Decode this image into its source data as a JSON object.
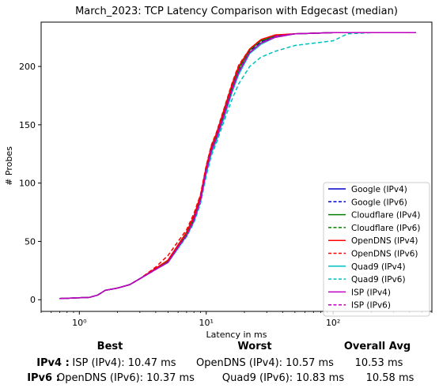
{
  "chart_data": {
    "type": "line",
    "title": "March_2023: TCP Latency Comparison with Edgecast (median)",
    "xlabel": "Latency in ms",
    "ylabel": "# Probes",
    "xscale": "log",
    "xlim": [
      0.5,
      600
    ],
    "ylim": [
      -10,
      238
    ],
    "xticks": [
      {
        "value": 1,
        "label": "10⁰"
      },
      {
        "value": 10,
        "label": "10¹"
      },
      {
        "value": 100,
        "label": "10²"
      }
    ],
    "yticks": [
      {
        "value": 0,
        "label": "0"
      },
      {
        "value": 50,
        "label": "50"
      },
      {
        "value": 100,
        "label": "100"
      },
      {
        "value": 150,
        "label": "150"
      },
      {
        "value": 200,
        "label": "200"
      }
    ],
    "grid": false,
    "legend_position": "lower-right",
    "series": [
      {
        "name": "Google (IPv4)",
        "color": "#0000cc",
        "style": "solid",
        "points": [
          [
            0.7,
            1
          ],
          [
            1.2,
            2
          ],
          [
            1.4,
            4
          ],
          [
            1.6,
            8
          ],
          [
            2.0,
            10
          ],
          [
            2.5,
            13
          ],
          [
            3.0,
            18
          ],
          [
            4.0,
            26
          ],
          [
            5.0,
            32
          ],
          [
            6.0,
            45
          ],
          [
            7.0,
            55
          ],
          [
            8.0,
            68
          ],
          [
            9.0,
            85
          ],
          [
            10.0,
            110
          ],
          [
            11.0,
            128
          ],
          [
            12.0,
            138
          ],
          [
            14.0,
            160
          ],
          [
            16.0,
            180
          ],
          [
            18.0,
            195
          ],
          [
            22.0,
            212
          ],
          [
            27.0,
            220
          ],
          [
            35.0,
            226
          ],
          [
            50.0,
            228
          ],
          [
            100.0,
            229
          ],
          [
            200.0,
            229
          ],
          [
            450.0,
            229
          ]
        ]
      },
      {
        "name": "Google (IPv6)",
        "color": "#0000cc",
        "style": "dashed",
        "points": [
          [
            0.7,
            1
          ],
          [
            1.2,
            2
          ],
          [
            1.4,
            4
          ],
          [
            1.6,
            8
          ],
          [
            2.0,
            10
          ],
          [
            2.5,
            13
          ],
          [
            3.0,
            18
          ],
          [
            4.0,
            26
          ],
          [
            5.0,
            32
          ],
          [
            6.0,
            45
          ],
          [
            7.0,
            56
          ],
          [
            8.0,
            70
          ],
          [
            9.0,
            86
          ],
          [
            10.0,
            112
          ],
          [
            11.0,
            129
          ],
          [
            12.0,
            139
          ],
          [
            14.0,
            161
          ],
          [
            16.0,
            182
          ],
          [
            18.0,
            197
          ],
          [
            22.0,
            213
          ],
          [
            27.0,
            221
          ],
          [
            35.0,
            226
          ],
          [
            50.0,
            228
          ],
          [
            100.0,
            229
          ],
          [
            200.0,
            229
          ],
          [
            450.0,
            229
          ]
        ]
      },
      {
        "name": "Cloudflare (IPv4)",
        "color": "#008000",
        "style": "solid",
        "points": [
          [
            0.7,
            1
          ],
          [
            1.2,
            2
          ],
          [
            1.4,
            4
          ],
          [
            1.6,
            8
          ],
          [
            2.0,
            10
          ],
          [
            2.5,
            13
          ],
          [
            3.0,
            18
          ],
          [
            4.0,
            27
          ],
          [
            5.0,
            33
          ],
          [
            6.0,
            46
          ],
          [
            7.0,
            56
          ],
          [
            8.0,
            70
          ],
          [
            9.0,
            87
          ],
          [
            10.0,
            112
          ],
          [
            11.0,
            130
          ],
          [
            12.0,
            140
          ],
          [
            14.0,
            163
          ],
          [
            16.0,
            183
          ],
          [
            18.0,
            198
          ],
          [
            22.0,
            214
          ],
          [
            27.0,
            222
          ],
          [
            35.0,
            226
          ],
          [
            50.0,
            228
          ],
          [
            100.0,
            229
          ],
          [
            200.0,
            229
          ],
          [
            450.0,
            229
          ]
        ]
      },
      {
        "name": "Cloudflare (IPv6)",
        "color": "#008000",
        "style": "dashed",
        "points": [
          [
            0.7,
            1
          ],
          [
            1.2,
            2
          ],
          [
            1.4,
            4
          ],
          [
            1.6,
            8
          ],
          [
            2.0,
            10
          ],
          [
            2.5,
            13
          ],
          [
            3.0,
            18
          ],
          [
            4.0,
            27
          ],
          [
            5.0,
            33
          ],
          [
            6.0,
            46
          ],
          [
            7.0,
            57
          ],
          [
            8.0,
            71
          ],
          [
            9.0,
            88
          ],
          [
            10.0,
            113
          ],
          [
            11.0,
            131
          ],
          [
            12.0,
            141
          ],
          [
            14.0,
            164
          ],
          [
            16.0,
            184
          ],
          [
            18.0,
            199
          ],
          [
            22.0,
            214
          ],
          [
            27.0,
            222
          ],
          [
            35.0,
            226
          ],
          [
            50.0,
            228
          ],
          [
            100.0,
            229
          ],
          [
            200.0,
            229
          ],
          [
            450.0,
            229
          ]
        ]
      },
      {
        "name": "OpenDNS (IPv4)",
        "color": "#ff0000",
        "style": "solid",
        "points": [
          [
            0.7,
            1
          ],
          [
            1.2,
            2
          ],
          [
            1.4,
            4
          ],
          [
            1.6,
            8
          ],
          [
            2.0,
            10
          ],
          [
            2.5,
            13
          ],
          [
            3.0,
            18
          ],
          [
            4.0,
            27
          ],
          [
            5.0,
            34
          ],
          [
            6.0,
            47
          ],
          [
            7.0,
            58
          ],
          [
            8.0,
            72
          ],
          [
            9.0,
            89
          ],
          [
            10.0,
            114
          ],
          [
            11.0,
            132
          ],
          [
            12.0,
            142
          ],
          [
            14.0,
            165
          ],
          [
            16.0,
            185
          ],
          [
            18.0,
            200
          ],
          [
            22.0,
            215
          ],
          [
            27.0,
            223
          ],
          [
            35.0,
            227
          ],
          [
            50.0,
            228
          ],
          [
            100.0,
            229
          ],
          [
            200.0,
            229
          ],
          [
            450.0,
            229
          ]
        ]
      },
      {
        "name": "OpenDNS (IPv6)",
        "color": "#ff0000",
        "style": "dashed",
        "points": [
          [
            0.7,
            1
          ],
          [
            1.2,
            2
          ],
          [
            1.4,
            4
          ],
          [
            1.6,
            8
          ],
          [
            2.0,
            10
          ],
          [
            2.5,
            13
          ],
          [
            3.0,
            18
          ],
          [
            4.0,
            28
          ],
          [
            5.0,
            38
          ],
          [
            6.0,
            50
          ],
          [
            7.0,
            60
          ],
          [
            8.0,
            74
          ],
          [
            9.0,
            90
          ],
          [
            10.0,
            115
          ],
          [
            11.0,
            133
          ],
          [
            12.0,
            143
          ],
          [
            14.0,
            166
          ],
          [
            16.0,
            186
          ],
          [
            18.0,
            201
          ],
          [
            22.0,
            215
          ],
          [
            27.0,
            223
          ],
          [
            35.0,
            227
          ],
          [
            50.0,
            228
          ],
          [
            100.0,
            229
          ],
          [
            200.0,
            229
          ],
          [
            450.0,
            229
          ]
        ]
      },
      {
        "name": "Quad9 (IPv4)",
        "color": "#00bfbf",
        "style": "solid",
        "points": [
          [
            0.7,
            1
          ],
          [
            1.2,
            2
          ],
          [
            1.4,
            4
          ],
          [
            1.6,
            8
          ],
          [
            2.0,
            10
          ],
          [
            2.5,
            13
          ],
          [
            3.0,
            18
          ],
          [
            4.0,
            26
          ],
          [
            5.0,
            32
          ],
          [
            6.0,
            44
          ],
          [
            7.0,
            55
          ],
          [
            8.0,
            67
          ],
          [
            9.0,
            84
          ],
          [
            10.0,
            108
          ],
          [
            11.0,
            126
          ],
          [
            12.0,
            136
          ],
          [
            14.0,
            158
          ],
          [
            16.0,
            178
          ],
          [
            18.0,
            193
          ],
          [
            22.0,
            211
          ],
          [
            27.0,
            219
          ],
          [
            35.0,
            225
          ],
          [
            50.0,
            228
          ],
          [
            100.0,
            229
          ],
          [
            200.0,
            229
          ],
          [
            450.0,
            229
          ]
        ]
      },
      {
        "name": "Quad9 (IPv6)",
        "color": "#00bfbf",
        "style": "dashed",
        "points": [
          [
            0.7,
            1
          ],
          [
            1.2,
            2
          ],
          [
            1.4,
            4
          ],
          [
            1.6,
            8
          ],
          [
            2.0,
            10
          ],
          [
            2.5,
            13
          ],
          [
            3.0,
            18
          ],
          [
            4.0,
            26
          ],
          [
            5.0,
            32
          ],
          [
            6.0,
            44
          ],
          [
            7.0,
            54
          ],
          [
            8.0,
            66
          ],
          [
            9.0,
            82
          ],
          [
            10.0,
            106
          ],
          [
            11.0,
            124
          ],
          [
            12.0,
            134
          ],
          [
            14.0,
            155
          ],
          [
            16.0,
            172
          ],
          [
            18.0,
            185
          ],
          [
            22.0,
            200
          ],
          [
            27.0,
            208
          ],
          [
            35.0,
            213
          ],
          [
            50.0,
            218
          ],
          [
            100.0,
            222
          ],
          [
            130.0,
            228
          ],
          [
            200.0,
            229
          ],
          [
            450.0,
            229
          ]
        ]
      },
      {
        "name": "ISP (IPv4)",
        "color": "#bf00bf",
        "style": "solid",
        "points": [
          [
            0.7,
            1
          ],
          [
            1.2,
            2
          ],
          [
            1.4,
            4
          ],
          [
            1.6,
            8
          ],
          [
            2.0,
            10
          ],
          [
            2.5,
            13
          ],
          [
            3.0,
            18
          ],
          [
            4.0,
            26
          ],
          [
            5.0,
            32
          ],
          [
            6.0,
            45
          ],
          [
            7.0,
            55
          ],
          [
            8.0,
            68
          ],
          [
            9.0,
            85
          ],
          [
            10.0,
            110
          ],
          [
            11.0,
            128
          ],
          [
            12.0,
            138
          ],
          [
            14.0,
            160
          ],
          [
            16.0,
            180
          ],
          [
            18.0,
            195
          ],
          [
            22.0,
            212
          ],
          [
            27.0,
            220
          ],
          [
            35.0,
            225
          ],
          [
            50.0,
            228
          ],
          [
            100.0,
            229
          ],
          [
            200.0,
            229
          ],
          [
            450.0,
            229
          ]
        ]
      },
      {
        "name": "ISP (IPv6)",
        "color": "#bf00bf",
        "style": "dashed",
        "points": [
          [
            0.7,
            1
          ],
          [
            1.2,
            2
          ],
          [
            1.4,
            4
          ],
          [
            1.6,
            8
          ],
          [
            2.0,
            10
          ],
          [
            2.5,
            13
          ],
          [
            3.0,
            18
          ],
          [
            4.0,
            26
          ],
          [
            5.0,
            32
          ],
          [
            6.0,
            45
          ],
          [
            7.0,
            55
          ],
          [
            8.0,
            69
          ],
          [
            9.0,
            86
          ],
          [
            10.0,
            111
          ],
          [
            11.0,
            129
          ],
          [
            12.0,
            139
          ],
          [
            14.0,
            161
          ],
          [
            16.0,
            181
          ],
          [
            18.0,
            196
          ],
          [
            22.0,
            212
          ],
          [
            27.0,
            220
          ],
          [
            35.0,
            226
          ],
          [
            50.0,
            228
          ],
          [
            100.0,
            229
          ],
          [
            200.0,
            229
          ],
          [
            450.0,
            229
          ]
        ]
      }
    ]
  },
  "summary": {
    "headers": {
      "best": "Best",
      "worst": "Worst",
      "overall": "Overall Avg"
    },
    "rows": [
      {
        "label": "IPv4 :",
        "best": "ISP (IPv4): 10.47 ms",
        "worst": "OpenDNS (IPv4): 10.57 ms",
        "overall": "10.53 ms"
      },
      {
        "label": "IPv6 :",
        "best": "OpenDNS (IPv6): 10.37 ms",
        "worst": "Quad9 (IPv6): 10.83 ms",
        "overall": "10.58 ms"
      }
    ]
  }
}
